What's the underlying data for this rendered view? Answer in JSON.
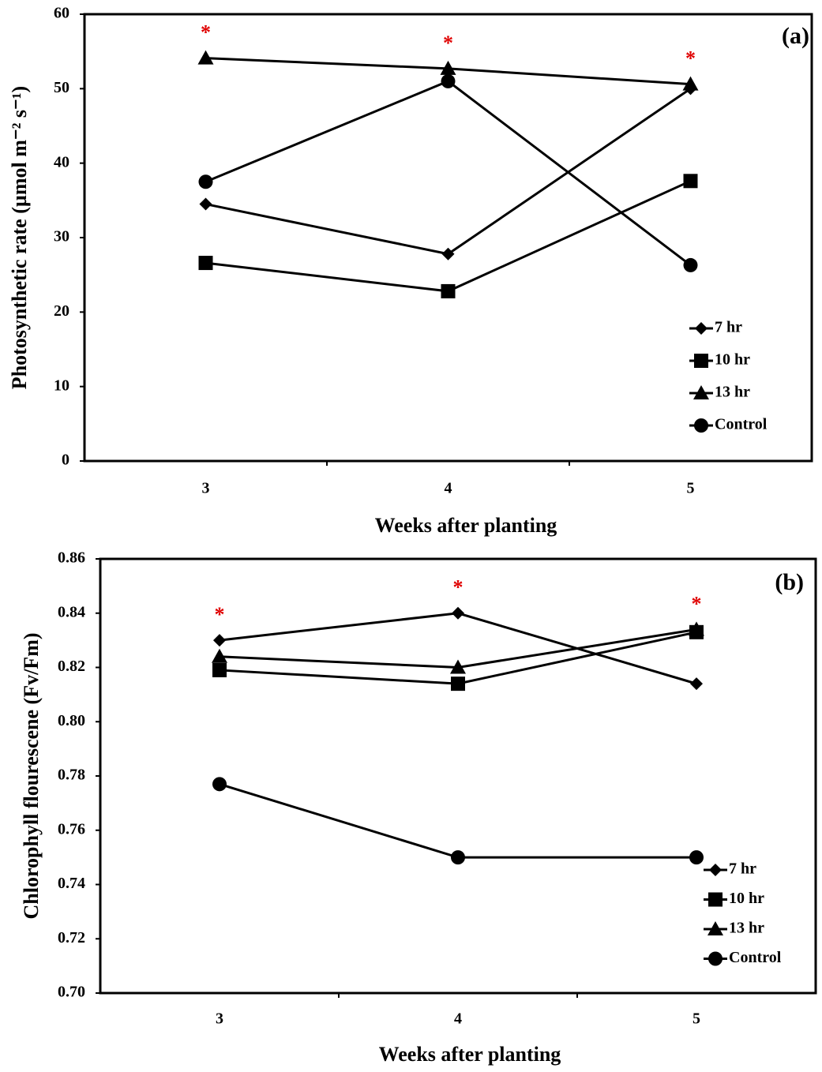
{
  "chart_data": [
    {
      "type": "line",
      "panel_label": "(a)",
      "x_label": "Weeks after planting",
      "y_label": "Photosynthetic rate (µmol m⁻² s⁻¹)",
      "categories": [
        "3",
        "4",
        "5"
      ],
      "series": [
        {
          "name": "7 hr",
          "color": "#000000",
          "marker": "diamond",
          "values": [
            34.5,
            27.8,
            50
          ]
        },
        {
          "name": "10 hr",
          "color": "#000000",
          "marker": "square",
          "values": [
            26.6,
            22.8,
            37.6
          ]
        },
        {
          "name": "13 hr",
          "color": "#000000",
          "marker": "triangle",
          "values": [
            54.1,
            52.7,
            50.6
          ]
        },
        {
          "name": "Control",
          "color": "#000000",
          "marker": "circle",
          "values": [
            37.5,
            51,
            26.3
          ]
        }
      ],
      "annotations": [
        "*",
        "*",
        "*"
      ],
      "annotation_color": "#e00000",
      "ylim": [
        0,
        60
      ],
      "yticks": [
        0,
        10,
        20,
        30,
        40,
        50,
        60
      ],
      "grid": false,
      "legend": "lower right"
    },
    {
      "type": "line",
      "panel_label": "(b)",
      "x_label": "Weeks after planting",
      "y_label": "Chlorophyll flourescene (Fv/Fm)",
      "categories": [
        "3",
        "4",
        "5"
      ],
      "series": [
        {
          "name": "7 hr",
          "color": "#000000",
          "marker": "diamond",
          "values": [
            0.83,
            0.84,
            0.814
          ]
        },
        {
          "name": "10 hr",
          "color": "#000000",
          "marker": "square",
          "values": [
            0.819,
            0.814,
            0.833
          ]
        },
        {
          "name": "13 hr",
          "color": "#000000",
          "marker": "triangle",
          "values": [
            0.824,
            0.82,
            0.834
          ]
        },
        {
          "name": "Control",
          "color": "#000000",
          "marker": "circle",
          "values": [
            0.777,
            0.75,
            0.75
          ]
        }
      ],
      "annotations": [
        "*",
        "*",
        "*"
      ],
      "annotation_color": "#e00000",
      "ylim": [
        0.7,
        0.86
      ],
      "yticks": [
        {
          "value": 0.7,
          "label": "0.70"
        },
        0.72,
        0.74,
        0.76,
        0.78,
        {
          "value": 0.8,
          "label": "0.80"
        },
        0.82,
        0.84,
        0.86
      ],
      "grid": false,
      "legend": "lower right"
    }
  ]
}
